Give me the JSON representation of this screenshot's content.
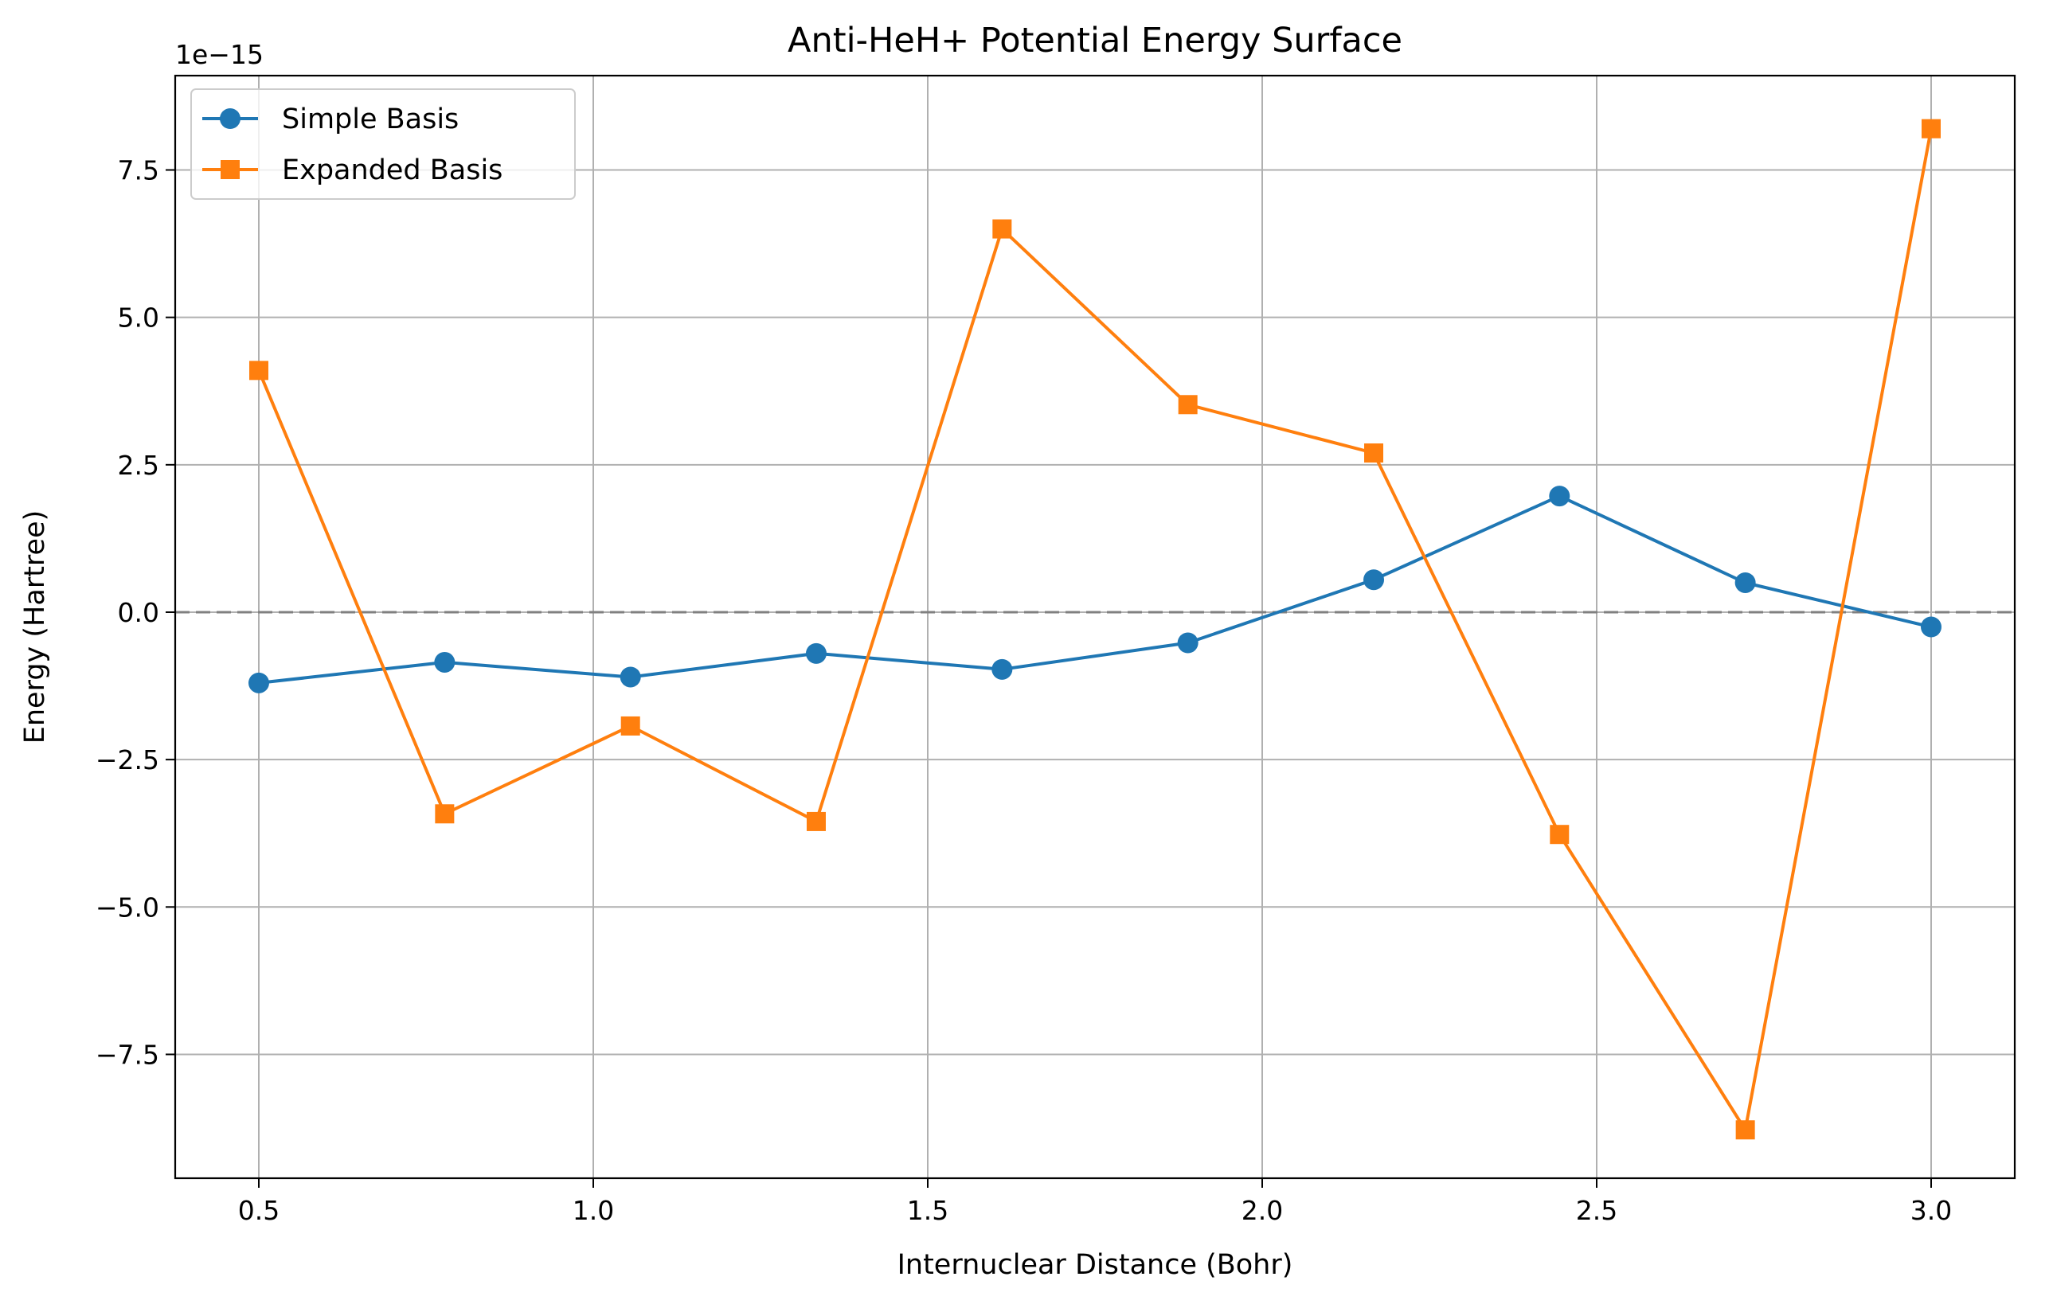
{
  "chart_data": {
    "type": "line",
    "title": "Anti-HeH+ Potential Energy Surface",
    "xlabel": "Internuclear Distance (Bohr)",
    "ylabel": "Energy (Hartree)",
    "y_offset_label": "1e−15",
    "xlim": [
      0.375,
      3.125
    ],
    "ylim": [
      -9.6,
      9.1
    ],
    "x_ticks": [
      0.5,
      1.0,
      1.5,
      2.0,
      2.5,
      3.0
    ],
    "x_tick_labels": [
      "0.5",
      "1.0",
      "1.5",
      "2.0",
      "2.5",
      "3.0"
    ],
    "y_ticks": [
      -7.5,
      -5.0,
      -2.5,
      0.0,
      2.5,
      5.0,
      7.5
    ],
    "y_tick_labels": [
      "−7.5",
      "−5.0",
      "−2.5",
      "0.0",
      "2.5",
      "5.0",
      "7.5"
    ],
    "grid": true,
    "legend_position": "top-left",
    "reference_line": {
      "y": 0.0,
      "style": "dashed",
      "color": "#808080"
    },
    "x": [
      0.5,
      0.7778,
      1.0556,
      1.3333,
      1.6111,
      1.8889,
      2.1667,
      2.4444,
      2.7222,
      3.0
    ],
    "series": [
      {
        "name": "Simple Basis",
        "color": "#1f77b4",
        "marker": "circle",
        "values": [
          -1.2,
          -0.85,
          -1.1,
          -0.7,
          -0.97,
          -0.52,
          0.55,
          1.97,
          0.5,
          -0.25
        ]
      },
      {
        "name": "Expanded Basis",
        "color": "#ff7f0e",
        "marker": "square",
        "values": [
          4.1,
          -3.42,
          -1.93,
          -3.55,
          6.5,
          3.52,
          2.7,
          -3.77,
          -8.78,
          8.2
        ]
      }
    ]
  }
}
